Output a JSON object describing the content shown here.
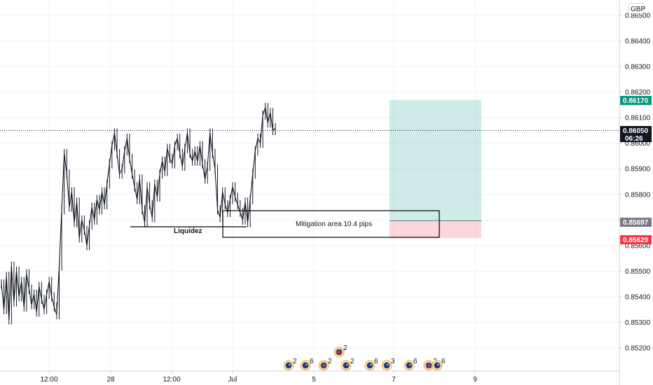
{
  "currency_label": "GBP",
  "chart_data": {
    "type": "line",
    "title": "",
    "xlabel": "",
    "ylabel": "",
    "ylim": [
      0.8511,
      0.8656
    ],
    "grid": true,
    "y_ticks": [
      "0.85200",
      "0.85300",
      "0.85400",
      "0.85500",
      "0.85600",
      "0.85700",
      "0.85800",
      "0.85900",
      "0.86000",
      "0.86100",
      "0.86200",
      "0.86300",
      "0.86400",
      "0.86500"
    ],
    "x_ticks": [
      "12:00",
      "28",
      "12:00",
      "Jul",
      "5",
      "7",
      "9"
    ],
    "series": [
      {
        "values": [
          0.8545,
          0.8535,
          0.8548,
          0.8531,
          0.8552,
          0.8538,
          0.855,
          0.854,
          0.8546,
          0.8536,
          0.8549,
          0.8543,
          0.8537,
          0.8541,
          0.8534,
          0.8544,
          0.8539,
          0.8535,
          0.8541,
          0.8546,
          0.854,
          0.8536,
          0.8533,
          0.8552,
          0.8574,
          0.8596,
          0.8588,
          0.8575,
          0.8581,
          0.8569,
          0.8577,
          0.8563,
          0.857,
          0.8566,
          0.856,
          0.8568,
          0.8575,
          0.857,
          0.8578,
          0.8574,
          0.8581,
          0.8576,
          0.8584,
          0.8592,
          0.8599,
          0.8604,
          0.8596,
          0.8588,
          0.859,
          0.8597,
          0.8602,
          0.8594,
          0.8588,
          0.8583,
          0.8578,
          0.8586,
          0.8574,
          0.8569,
          0.8583,
          0.8576,
          0.8571,
          0.8584,
          0.8579,
          0.8588,
          0.8593,
          0.8589,
          0.8598,
          0.8594,
          0.8592,
          0.8599,
          0.8602,
          0.8596,
          0.8591,
          0.8598,
          0.8604,
          0.8596,
          0.8593,
          0.8597,
          0.8593,
          0.8599,
          0.8592,
          0.8586,
          0.8591,
          0.8604,
          0.8596,
          0.859,
          0.8574,
          0.8571,
          0.8581,
          0.8576,
          0.8573,
          0.8578,
          0.8583,
          0.8579,
          0.8576,
          0.8573,
          0.857,
          0.8577,
          0.8569,
          0.8578,
          0.8588,
          0.8597,
          0.8602,
          0.86,
          0.8611,
          0.8614,
          0.8608,
          0.8612,
          0.8605,
          0.8606
        ],
        "x_start": "Jun 26 00:00",
        "x_end": "Jul 2 18:00",
        "color": "#131722"
      }
    ],
    "current_price": "0.86050",
    "countdown": "06:26",
    "long_position": {
      "target": "0.86170",
      "entry": "0.85697",
      "stop": "0.85629",
      "target_color": "#089981",
      "entry_color": "#787b86",
      "stop_color": "#f23645"
    },
    "annotations": [
      {
        "text": "Liquidez"
      },
      {
        "text": "Mitigation area 10.4 pips"
      }
    ],
    "event_markers": [
      {
        "count": "2",
        "flag": "eu"
      },
      {
        "count": "6",
        "flag": "eu"
      },
      {
        "count": "2",
        "flag": "uk"
      },
      {
        "count": "2",
        "flag": "uk"
      },
      {
        "count": "2",
        "flag": "eu"
      },
      {
        "count": "6",
        "flag": "eu"
      },
      {
        "count": "3",
        "flag": "eu"
      },
      {
        "count": "6",
        "flag": "eu"
      },
      {
        "count": "2",
        "flag": "uk"
      },
      {
        "count": "6",
        "flag": "eu"
      }
    ]
  }
}
